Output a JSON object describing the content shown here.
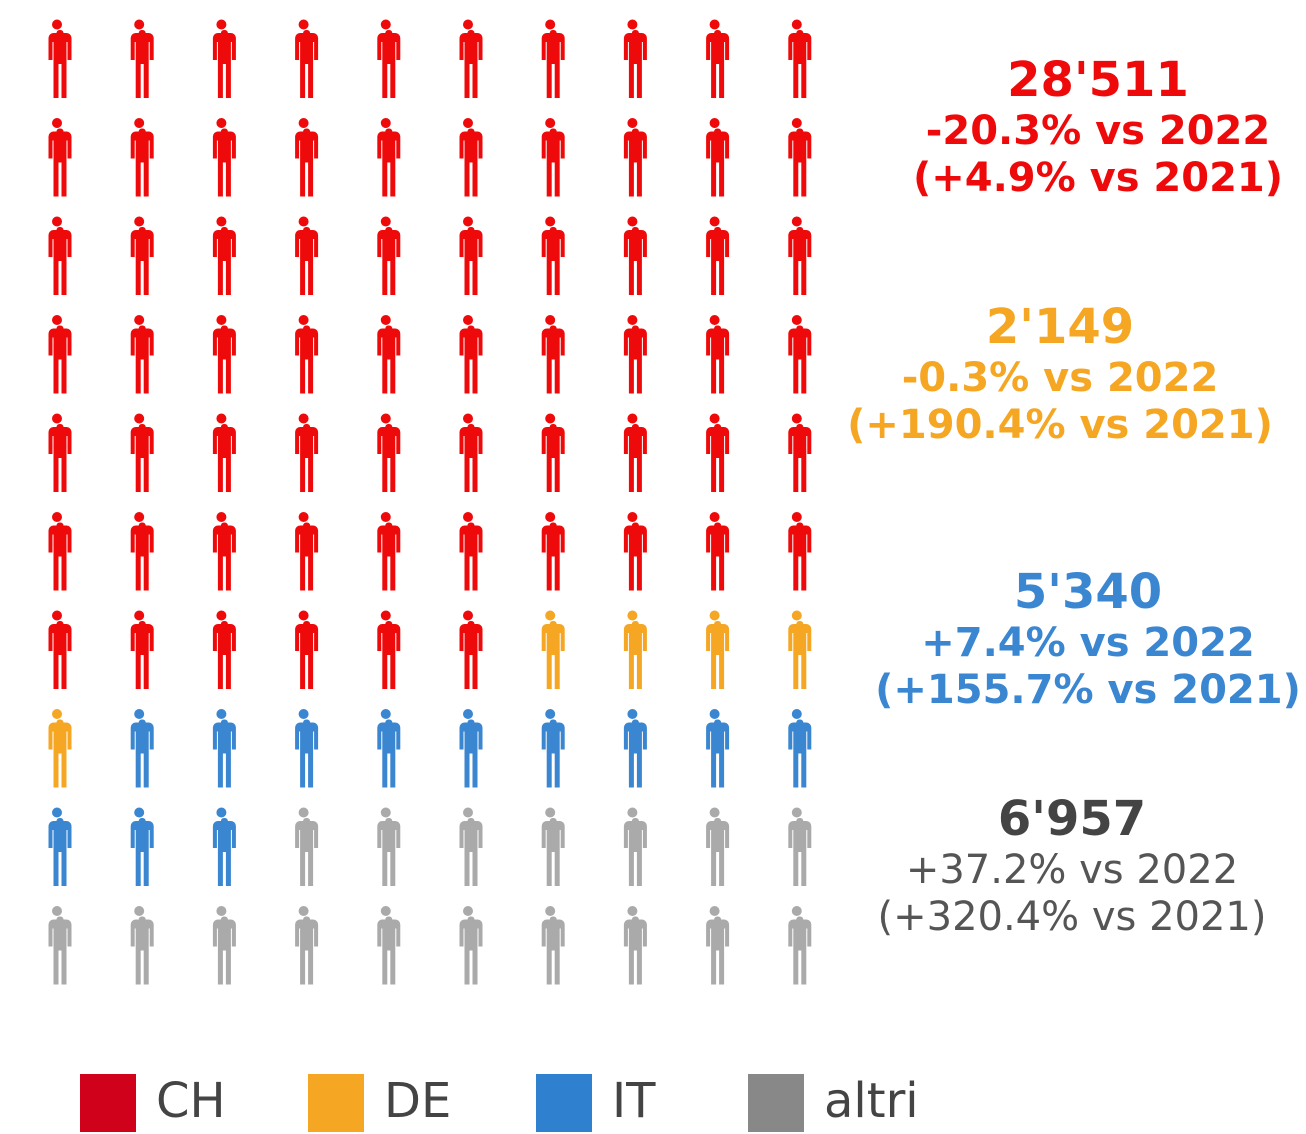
{
  "chart_data": {
    "type": "pictogram",
    "columns": 10,
    "series": [
      {
        "name": "CH",
        "color": "#ee0a0a",
        "value": 28511,
        "value_label": "28'511",
        "change_2022": "-20.3% vs 2022",
        "change_2021": "(+4.9% vs 2021)",
        "icons": 66
      },
      {
        "name": "DE",
        "color": "#f5a623",
        "value": 2149,
        "value_label": "2'149",
        "change_2022": "-0.3% vs 2022",
        "change_2021": "(+190.4% vs 2021)",
        "icons": 5
      },
      {
        "name": "IT",
        "color": "#3a86d1",
        "value": 5340,
        "value_label": "5'340",
        "change_2022": "+7.4% vs 2022",
        "change_2021": "(+155.7% vs 2021)",
        "icons": 12
      },
      {
        "name": "altri",
        "color": "#aaaaaa",
        "value": 6957,
        "value_label": "6'957",
        "change_2022": "+37.2% vs 2022",
        "change_2021": "(+320.4% vs 2021)",
        "icons": 17
      }
    ]
  }
}
